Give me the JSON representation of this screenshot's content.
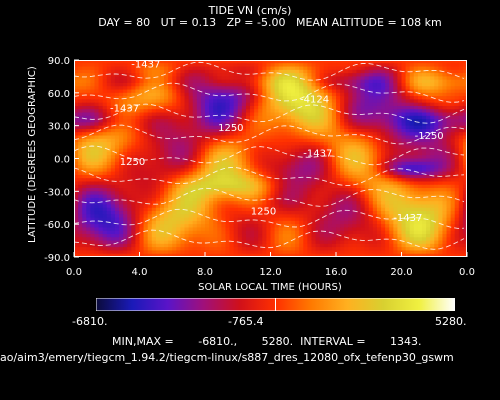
{
  "chart_data": {
    "type": "heatmap",
    "title": "TIDE VN (cm/s)",
    "header": {
      "day_label": "DAY =",
      "day": "80",
      "ut_label": "UT =",
      "ut": "0.13",
      "zp_label": "ZP =",
      "zp": "-5.00",
      "alt_label": "MEAN ALTITUDE =",
      "alt": "108 km"
    },
    "xlabel": "SOLAR LOCAL TIME (HOURS)",
    "ylabel": "LATITUDE (DEGREES GEOGRAPHIC)",
    "xlim": [
      0.0,
      24.0
    ],
    "ylim": [
      -90.0,
      90.0
    ],
    "xticks": [
      "0.0",
      "4.0",
      "8.0",
      "12.0",
      "16.0",
      "20.0",
      "0.0"
    ],
    "yticks": [
      "-90.0",
      "-60.0",
      "-30.0",
      "0.0",
      "30.0",
      "60.0",
      "90.0"
    ],
    "contour_labels": [
      "-1437",
      "-4124",
      "-4124",
      "1250",
      "-1437",
      "-1437",
      "1250",
      "-1437",
      "1250",
      "-1250"
    ],
    "colorbar": {
      "min_label": "-6810.",
      "mid_label": "-765.4",
      "max_label": "5280."
    },
    "min": -6810.0,
    "max": 5280.0,
    "interval": 1343.0,
    "stats_text": {
      "minmax_label": "MIN,MAX =",
      "min": "-6810.,",
      "max": "5280.",
      "interval_label": "INTERVAL =",
      "interval": "1343."
    },
    "file_path": "ao/aim3/emery/tiegcm_1.94.2/tiegcm-linux/s887_dres_12080_ofx_tefenp30_gswm",
    "colors": {
      "scale": [
        "#0b0b3a",
        "#1a1ab8",
        "#5a14c8",
        "#a0107a",
        "#d0101a",
        "#ff3000",
        "#ff7a00",
        "#ffb020",
        "#d8d030",
        "#f0f040",
        "#ffffff"
      ]
    }
  }
}
